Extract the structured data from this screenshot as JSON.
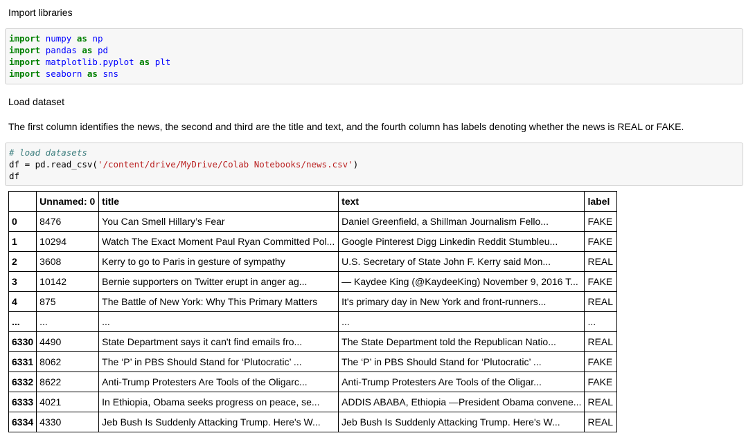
{
  "cells": {
    "md1": "Import libraries",
    "code1": [
      [
        "import",
        "numpy",
        "as",
        "np"
      ],
      [
        "import",
        "pandas",
        "as",
        "pd"
      ],
      [
        "import",
        "matplotlib.pyplot",
        "as",
        "plt"
      ],
      [
        "import",
        "seaborn",
        "as",
        "sns"
      ]
    ],
    "md2": "Load dataset",
    "md3": "The first column identifies the news, the second and third are the title and text, and the fourth column has labels denoting whether the news is REAL or FAKE.",
    "code2": {
      "comment": "# load datasets",
      "line2_pre": "df = pd.read_csv(",
      "line2_str": "'/content/drive/MyDrive/Colab Notebooks/news.csv'",
      "line2_post": ")",
      "line3": "df"
    }
  },
  "table": {
    "columns": [
      "",
      "Unnamed: 0",
      "title",
      "text",
      "label"
    ],
    "rows": [
      [
        "0",
        "8476",
        "You Can Smell Hillary’s Fear",
        "Daniel Greenfield, a Shillman Journalism Fello...",
        "FAKE"
      ],
      [
        "1",
        "10294",
        "Watch The Exact Moment Paul Ryan Committed Pol...",
        "Google Pinterest Digg Linkedin Reddit Stumbleu...",
        "FAKE"
      ],
      [
        "2",
        "3608",
        "Kerry to go to Paris in gesture of sympathy",
        "U.S. Secretary of State John F. Kerry said Mon...",
        "REAL"
      ],
      [
        "3",
        "10142",
        "Bernie supporters on Twitter erupt in anger ag...",
        "— Kaydee King (@KaydeeKing) November 9, 2016 T...",
        "FAKE"
      ],
      [
        "4",
        "875",
        "The Battle of New York: Why This Primary Matters",
        "It's primary day in New York and front-runners...",
        "REAL"
      ],
      [
        "...",
        "...",
        "...",
        "...",
        "..."
      ],
      [
        "6330",
        "4490",
        "State Department says it can't find emails fro...",
        "The State Department told the Republican Natio...",
        "REAL"
      ],
      [
        "6331",
        "8062",
        "The ‘P’ in PBS Should Stand for ‘Plutocratic’ ...",
        "The ‘P’ in PBS Should Stand for ‘Plutocratic’ ...",
        "FAKE"
      ],
      [
        "6332",
        "8622",
        "Anti-Trump Protesters Are Tools of the Oligarc...",
        "Anti-Trump Protesters Are Tools of the Oligar...",
        "FAKE"
      ],
      [
        "6333",
        "4021",
        "In Ethiopia, Obama seeks progress on peace, se...",
        "ADDIS ABABA, Ethiopia —President Obama convene...",
        "REAL"
      ],
      [
        "6334",
        "4330",
        "Jeb Bush Is Suddenly Attacking Trump. Here's W...",
        "Jeb Bush Is Suddenly Attacking Trump. Here's W...",
        "REAL"
      ]
    ]
  }
}
